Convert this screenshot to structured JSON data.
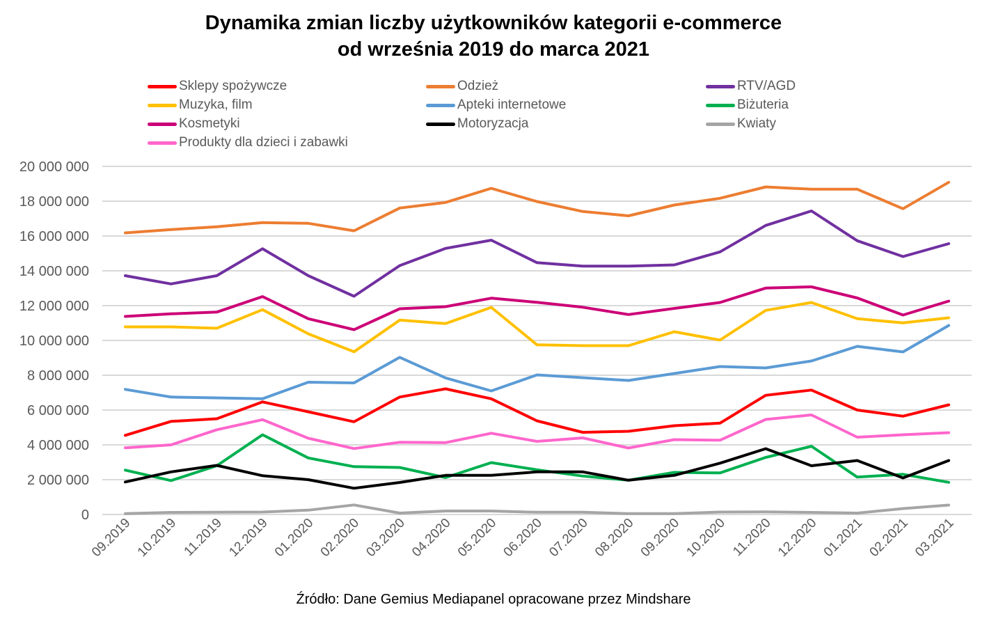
{
  "chart_data": {
    "type": "line",
    "title": "Dynamika zmian liczby użytkowników kategorii e-commerce",
    "subtitle": "od września 2019 do marca 2021",
    "xlabel": "",
    "ylabel": "",
    "ylim": [
      0,
      20000000
    ],
    "yticks": [
      0,
      2000000,
      4000000,
      6000000,
      8000000,
      10000000,
      12000000,
      14000000,
      16000000,
      18000000,
      20000000
    ],
    "ytick_labels": [
      "0",
      "2 000 000",
      "4 000 000",
      "6 000 000",
      "8 000 000",
      "10 000 000",
      "12 000 000",
      "14 000 000",
      "16 000 000",
      "18 000 000",
      "20 000 000"
    ],
    "grid": true,
    "legend_position": "top",
    "categories": [
      "09.2019",
      "10.2019",
      "11.2019",
      "12.2019",
      "01.2020",
      "02.2020",
      "03.2020",
      "04.2020",
      "05.2020",
      "06.2020",
      "07.2020",
      "08.2020",
      "09.2020",
      "10.2020",
      "11.2020",
      "12.2020",
      "01.2021",
      "02.2021",
      "03.2021"
    ],
    "series": [
      {
        "name": "Sklepy spożywcze",
        "color": "#FF0000",
        "values": [
          4550000,
          5350000,
          5500000,
          6470000,
          5900000,
          5330000,
          6750000,
          7220000,
          6650000,
          5380000,
          4720000,
          4780000,
          5100000,
          5250000,
          6850000,
          7150000,
          6000000,
          5650000,
          6300000
        ]
      },
      {
        "name": "Odzież",
        "color": "#ED7D31",
        "values": [
          16180000,
          16370000,
          16530000,
          16770000,
          16730000,
          16300000,
          17610000,
          17930000,
          18740000,
          17980000,
          17410000,
          17160000,
          17780000,
          18170000,
          18820000,
          18690000,
          18690000,
          17570000,
          19090000
        ]
      },
      {
        "name": "RTV/AGD",
        "color": "#7030A0",
        "values": [
          13720000,
          13250000,
          13720000,
          15270000,
          13720000,
          12540000,
          14300000,
          15290000,
          15760000,
          14470000,
          14270000,
          14270000,
          14340000,
          15090000,
          16610000,
          17440000,
          15730000,
          14820000,
          15560000
        ]
      },
      {
        "name": "Muzyka, film",
        "color": "#FFC000",
        "values": [
          10780000,
          10780000,
          10700000,
          11770000,
          10380000,
          9350000,
          11170000,
          10970000,
          11900000,
          9750000,
          9700000,
          9700000,
          10500000,
          10020000,
          11730000,
          12180000,
          11250000,
          11010000,
          11300000
        ]
      },
      {
        "name": "Apteki internetowe",
        "color": "#5B9BD5",
        "values": [
          7190000,
          6750000,
          6700000,
          6650000,
          7600000,
          7560000,
          9030000,
          7850000,
          7100000,
          8020000,
          7860000,
          7700000,
          8100000,
          8500000,
          8420000,
          8820000,
          9660000,
          9340000,
          10860000
        ]
      },
      {
        "name": "Biżuteria",
        "color": "#00B050",
        "values": [
          2550000,
          1950000,
          2800000,
          4580000,
          3250000,
          2750000,
          2700000,
          2120000,
          2980000,
          2570000,
          2210000,
          1970000,
          2420000,
          2390000,
          3280000,
          3920000,
          2150000,
          2310000,
          1850000
        ]
      },
      {
        "name": "Kosmetyki",
        "color": "#CC0077",
        "values": [
          11380000,
          11530000,
          11630000,
          12520000,
          11250000,
          10620000,
          11820000,
          11940000,
          12430000,
          12190000,
          11910000,
          11490000,
          11840000,
          12180000,
          13010000,
          13080000,
          12440000,
          11460000,
          12260000
        ]
      },
      {
        "name": "Motoryzacja",
        "color": "#000000",
        "values": [
          1870000,
          2450000,
          2820000,
          2230000,
          2000000,
          1510000,
          1840000,
          2250000,
          2250000,
          2450000,
          2450000,
          1970000,
          2250000,
          2950000,
          3780000,
          2800000,
          3100000,
          2100000,
          3100000
        ]
      },
      {
        "name": "Kwiaty",
        "color": "#A5A5A5",
        "values": [
          50000,
          120000,
          130000,
          140000,
          250000,
          550000,
          80000,
          200000,
          200000,
          130000,
          130000,
          50000,
          50000,
          140000,
          150000,
          120000,
          80000,
          340000,
          540000
        ]
      },
      {
        "name": "Produkty dla dzieci i zabawki",
        "color": "#FF66CC",
        "values": [
          3830000,
          4000000,
          4870000,
          5450000,
          4380000,
          3790000,
          4150000,
          4130000,
          4670000,
          4200000,
          4400000,
          3820000,
          4300000,
          4270000,
          5460000,
          5720000,
          4440000,
          4580000,
          4700000
        ]
      }
    ],
    "source": "Źródło: Dane Gemius Mediapanel opracowane przez Mindshare"
  },
  "title_lines": [
    "Dynamika zmian liczby użytkowników kategorii e-commerce",
    "od września 2019 do marca 2021"
  ],
  "colors": {
    "gridline": "#D9D9D9",
    "tick_text": "#595959"
  }
}
